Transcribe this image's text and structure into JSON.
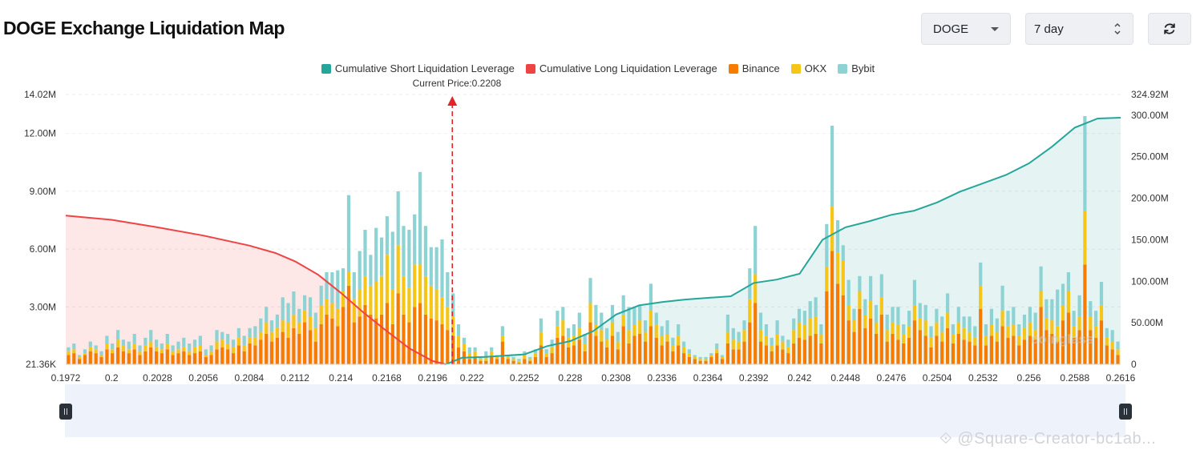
{
  "page": {
    "title": "DOGE Exchange Liquidation Map"
  },
  "controls": {
    "coin": "DOGE",
    "period": "7 day",
    "refresh_icon": "refresh-icon",
    "coin_icon": "caret-down-icon",
    "period_icon": "up-down-icon"
  },
  "watermark": {
    "text": "@Square-Creator-bc1ab...",
    "logo": "coinglass",
    "icon": "binance-square-icon"
  },
  "chart_data": {
    "type": "bar",
    "legend": [
      {
        "name": "Cumulative Short Liquidation Leverage",
        "color": "#26a69a"
      },
      {
        "name": "Cumulative Long Liquidation Leverage",
        "color": "#ef4444"
      },
      {
        "name": "Binance",
        "color": "#f57c00"
      },
      {
        "name": "OKX",
        "color": "#f5c518"
      },
      {
        "name": "Bybit",
        "color": "#8dd3d3"
      }
    ],
    "annotation": "Current Price:0.2208",
    "current_price": 0.2208,
    "legend_position": "top-center",
    "x_ticks": [
      "0.1972",
      "0.2",
      "0.2028",
      "0.2056",
      "0.2084",
      "0.2112",
      "0.214",
      "0.2168",
      "0.2196",
      "0.222",
      "0.2252",
      "0.228",
      "0.2308",
      "0.2336",
      "0.2364",
      "0.2392",
      "0.242",
      "0.2448",
      "0.2476",
      "0.2504",
      "0.2532",
      "0.256",
      "0.2588",
      "0.2616"
    ],
    "x_range": [
      0.1972,
      0.2616
    ],
    "y_left_ticks": [
      "21.36K",
      "3.00M",
      "6.00M",
      "9.00M",
      "12.00M",
      "14.02M"
    ],
    "y_left_range": [
      0.02136,
      14.02
    ],
    "y_right_ticks": [
      "0",
      "50.00M",
      "100.00M",
      "150.00M",
      "200.00M",
      "250.00M",
      "300.00M",
      "324.92M"
    ],
    "y_right_range": [
      0,
      324.92
    ],
    "grid": true,
    "bar_groups": [
      [
        0.5,
        0.2,
        0.2
      ],
      [
        0.6,
        0.2,
        0.3
      ],
      [
        0.3,
        0.1,
        0.1
      ],
      [
        0.5,
        0.1,
        0.2
      ],
      [
        0.7,
        0.2,
        0.3
      ],
      [
        0.6,
        0.2,
        0.2
      ],
      [
        0.4,
        0.1,
        0.2
      ],
      [
        0.8,
        0.3,
        0.4
      ],
      [
        0.6,
        0.2,
        0.3
      ],
      [
        0.9,
        0.4,
        0.5
      ],
      [
        0.7,
        0.3,
        0.3
      ],
      [
        0.6,
        0.2,
        0.4
      ],
      [
        0.8,
        0.3,
        0.5
      ],
      [
        0.5,
        0.2,
        0.3
      ],
      [
        0.7,
        0.3,
        0.4
      ],
      [
        0.9,
        0.3,
        0.6
      ],
      [
        0.7,
        0.2,
        0.4
      ],
      [
        0.6,
        0.2,
        0.3
      ],
      [
        0.8,
        0.3,
        0.5
      ],
      [
        0.5,
        0.2,
        0.3
      ],
      [
        0.6,
        0.2,
        0.4
      ],
      [
        0.7,
        0.2,
        0.5
      ],
      [
        0.5,
        0.2,
        0.4
      ],
      [
        0.6,
        0.3,
        0.4
      ],
      [
        0.7,
        0.3,
        0.5
      ],
      [
        0.4,
        0.1,
        0.3
      ],
      [
        0.5,
        0.2,
        0.3
      ],
      [
        0.8,
        0.4,
        0.6
      ],
      [
        0.9,
        0.4,
        0.4
      ],
      [
        0.8,
        0.3,
        0.5
      ],
      [
        0.6,
        0.3,
        0.4
      ],
      [
        1.0,
        0.4,
        0.5
      ],
      [
        0.7,
        0.3,
        0.5
      ],
      [
        1.1,
        0.3,
        0.5
      ],
      [
        1.0,
        0.4,
        0.6
      ],
      [
        1.3,
        0.4,
        0.7
      ],
      [
        1.6,
        0.6,
        0.8
      ],
      [
        1.2,
        0.5,
        0.6
      ],
      [
        1.4,
        0.5,
        0.7
      ],
      [
        1.7,
        0.6,
        1.2
      ],
      [
        1.4,
        0.8,
        1.0
      ],
      [
        1.9,
        0.7,
        1.2
      ],
      [
        1.6,
        0.6,
        0.7
      ],
      [
        2.2,
        0.6,
        0.8
      ],
      [
        1.8,
        0.7,
        1.0
      ],
      [
        1.2,
        0.7,
        0.8
      ],
      [
        2.1,
        1.0,
        1.0
      ],
      [
        2.6,
        0.8,
        1.4
      ],
      [
        2.4,
        0.8,
        1.6
      ],
      [
        2.0,
        0.9,
        2.0
      ],
      [
        3.0,
        0.8,
        1.2
      ],
      [
        4.1,
        0.7,
        4.0
      ],
      [
        2.2,
        1.2,
        1.4
      ],
      [
        2.5,
        1.4,
        2.0
      ],
      [
        3.1,
        1.5,
        2.4
      ],
      [
        2.6,
        1.5,
        1.6
      ],
      [
        2.4,
        1.9,
        2.8
      ],
      [
        2.6,
        2.0,
        2.0
      ],
      [
        3.2,
        2.5,
        2.0
      ],
      [
        2.1,
        1.8,
        3.0
      ],
      [
        3.7,
        2.5,
        2.8
      ],
      [
        2.6,
        2.0,
        2.6
      ],
      [
        2.2,
        1.8,
        3.0
      ],
      [
        3.0,
        2.2,
        2.6
      ],
      [
        3.2,
        2.0,
        4.8
      ],
      [
        2.6,
        2.0,
        2.6
      ],
      [
        2.4,
        1.7,
        2.0
      ],
      [
        2.3,
        1.6,
        2.2
      ],
      [
        2.1,
        1.4,
        3.0
      ],
      [
        1.8,
        1.2,
        1.8
      ],
      [
        1.5,
        1.0,
        1.2
      ],
      [
        0.9,
        0.6,
        0.6
      ],
      [
        0.7,
        0.4,
        0.3
      ],
      [
        0.3,
        0.3,
        0.3
      ],
      [
        0.4,
        0.3,
        0.2
      ],
      [
        0.2,
        0.1,
        0.1
      ],
      [
        0.2,
        0.2,
        0.3
      ],
      [
        0.4,
        0.3,
        0.2
      ],
      [
        0.3,
        0.1,
        0.1
      ],
      [
        1.2,
        0.3,
        0.5
      ],
      [
        0.3,
        0.1,
        0.1
      ],
      [
        0.2,
        0.1,
        0.1
      ],
      [
        0.1,
        0.1,
        0.1
      ],
      [
        0.3,
        0.2,
        0.2
      ],
      [
        0.2,
        0.1,
        0.1
      ],
      [
        0.4,
        0.2,
        0.2
      ],
      [
        1.0,
        0.7,
        0.7
      ],
      [
        0.4,
        0.2,
        0.2
      ],
      [
        0.6,
        0.3,
        0.4
      ],
      [
        1.4,
        0.6,
        0.8
      ],
      [
        1.5,
        0.8,
        0.7
      ],
      [
        0.9,
        0.5,
        0.5
      ],
      [
        1.0,
        0.5,
        0.6
      ],
      [
        1.3,
        0.6,
        0.8
      ],
      [
        0.7,
        0.4,
        0.5
      ],
      [
        2.2,
        1.0,
        1.3
      ],
      [
        1.5,
        0.6,
        1.0
      ],
      [
        1.2,
        0.6,
        0.9
      ],
      [
        0.9,
        0.4,
        0.6
      ],
      [
        1.5,
        0.7,
        0.9
      ],
      [
        0.8,
        0.4,
        0.5
      ],
      [
        2.0,
        0.6,
        1.0
      ],
      [
        1.1,
        0.7,
        1.2
      ],
      [
        1.5,
        0.6,
        0.9
      ],
      [
        1.6,
        0.7,
        0.8
      ],
      [
        1.2,
        0.5,
        0.6
      ],
      [
        2.0,
        0.8,
        1.4
      ],
      [
        1.4,
        0.7,
        0.6
      ],
      [
        1.0,
        0.5,
        0.5
      ],
      [
        1.2,
        0.4,
        0.7
      ],
      [
        0.7,
        0.3,
        0.4
      ],
      [
        1.0,
        0.5,
        0.6
      ],
      [
        0.6,
        0.3,
        0.3
      ],
      [
        0.4,
        0.2,
        0.2
      ],
      [
        0.3,
        0.1,
        0.1
      ],
      [
        0.2,
        0.1,
        0.1
      ],
      [
        0.2,
        0.1,
        0.1
      ],
      [
        0.4,
        0.1,
        0.1
      ],
      [
        0.6,
        0.2,
        0.3
      ],
      [
        0.3,
        0.1,
        0.1
      ],
      [
        1.1,
        0.6,
        0.9
      ],
      [
        0.8,
        0.5,
        0.6
      ],
      [
        0.8,
        0.4,
        0.5
      ],
      [
        1.2,
        0.6,
        0.5
      ],
      [
        2.2,
        1.2,
        1.6
      ],
      [
        3.2,
        1.5,
        2.5
      ],
      [
        1.2,
        0.6,
        0.9
      ],
      [
        1.0,
        0.5,
        0.6
      ],
      [
        0.7,
        0.3,
        0.4
      ],
      [
        1.0,
        0.6,
        0.7
      ],
      [
        0.8,
        0.4,
        0.3
      ],
      [
        0.6,
        0.3,
        0.4
      ],
      [
        1.1,
        0.7,
        0.6
      ],
      [
        1.4,
        0.8,
        0.7
      ],
      [
        1.3,
        0.8,
        0.7
      ],
      [
        1.5,
        0.9,
        0.9
      ],
      [
        1.6,
        0.9,
        1.0
      ],
      [
        1.1,
        0.5,
        0.5
      ],
      [
        3.8,
        1.3,
        2.2
      ],
      [
        5.9,
        2.3,
        4.2
      ],
      [
        4.2,
        1.6,
        1.7
      ],
      [
        3.6,
        1.8,
        0.8
      ],
      [
        2.3,
        0.8,
        1.3
      ],
      [
        1.7,
        0.6,
        0.6
      ],
      [
        2.9,
        0.9,
        0.8
      ],
      [
        1.9,
        0.7,
        0.8
      ],
      [
        2.4,
        0.9,
        1.3
      ],
      [
        1.6,
        0.6,
        0.9
      ],
      [
        2.6,
        0.9,
        1.2
      ],
      [
        1.2,
        0.6,
        0.8
      ],
      [
        1.6,
        0.6,
        0.8
      ],
      [
        1.3,
        0.8,
        0.9
      ],
      [
        1.1,
        0.5,
        0.5
      ],
      [
        1.4,
        0.6,
        0.8
      ],
      [
        2.3,
        0.8,
        1.3
      ],
      [
        1.8,
        0.6,
        0.8
      ],
      [
        1.5,
        0.8,
        0.8
      ],
      [
        0.9,
        0.5,
        0.6
      ],
      [
        1.5,
        0.7,
        0.7
      ],
      [
        1.2,
        0.5,
        0.8
      ],
      [
        1.9,
        0.8,
        1.0
      ],
      [
        1.1,
        0.5,
        0.5
      ],
      [
        1.6,
        0.6,
        0.8
      ],
      [
        1.3,
        0.6,
        0.6
      ],
      [
        1.2,
        0.5,
        0.8
      ],
      [
        1.0,
        0.4,
        0.6
      ],
      [
        2.9,
        1.2,
        1.2
      ],
      [
        1.0,
        0.5,
        0.6
      ],
      [
        1.5,
        0.6,
        0.8
      ],
      [
        1.2,
        0.5,
        0.7
      ],
      [
        2.0,
        0.8,
        1.3
      ],
      [
        1.4,
        0.6,
        0.8
      ],
      [
        1.5,
        0.6,
        0.9
      ],
      [
        1.0,
        0.5,
        0.6
      ],
      [
        1.3,
        0.6,
        0.7
      ],
      [
        1.5,
        0.7,
        0.8
      ],
      [
        1.3,
        0.5,
        0.9
      ],
      [
        3.0,
        0.8,
        1.3
      ],
      [
        1.8,
        0.6,
        1.0
      ],
      [
        1.6,
        0.7,
        1.1
      ],
      [
        1.2,
        0.8,
        1.9
      ],
      [
        2.3,
        0.8,
        1.1
      ],
      [
        2.7,
        1.1,
        1.0
      ],
      [
        1.4,
        0.6,
        0.8
      ],
      [
        1.8,
        0.7,
        1.1
      ],
      [
        5.2,
        2.8,
        4.9
      ],
      [
        1.8,
        0.7,
        0.8
      ],
      [
        1.4,
        0.6,
        0.8
      ],
      [
        2.3,
        0.8,
        1.2
      ],
      [
        1.0,
        0.4,
        0.5
      ],
      [
        0.8,
        0.4,
        0.6
      ],
      [
        0.5,
        0.3,
        0.4
      ]
    ],
    "series": [
      {
        "name": "Cumulative Long Liquidation Leverage",
        "x": [
          0.1972,
          0.2,
          0.2028,
          0.2056,
          0.2084,
          0.21,
          0.2112,
          0.2126,
          0.214,
          0.2154,
          0.2168,
          0.2182,
          0.2196,
          0.2204
        ],
        "y": [
          179,
          174,
          165,
          155,
          143,
          134,
          124,
          108,
          86,
          62,
          40,
          19,
          4,
          0
        ]
      },
      {
        "name": "Cumulative Short Liquidation Leverage",
        "x": [
          0.2204,
          0.2214,
          0.2228,
          0.2252,
          0.2266,
          0.228,
          0.2294,
          0.2308,
          0.2322,
          0.2336,
          0.235,
          0.2364,
          0.2378,
          0.2392,
          0.2406,
          0.242,
          0.2434,
          0.2448,
          0.2462,
          0.2476,
          0.249,
          0.2504,
          0.2518,
          0.2532,
          0.2546,
          0.256,
          0.2574,
          0.2588,
          0.2602,
          0.2616
        ],
        "y": [
          0,
          8,
          9,
          12,
          22,
          28,
          40,
          60,
          71,
          75,
          78,
          80,
          82,
          98,
          102,
          109,
          150,
          165,
          172,
          180,
          185,
          195,
          208,
          218,
          228,
          242,
          262,
          285,
          296,
          297
        ]
      }
    ]
  }
}
